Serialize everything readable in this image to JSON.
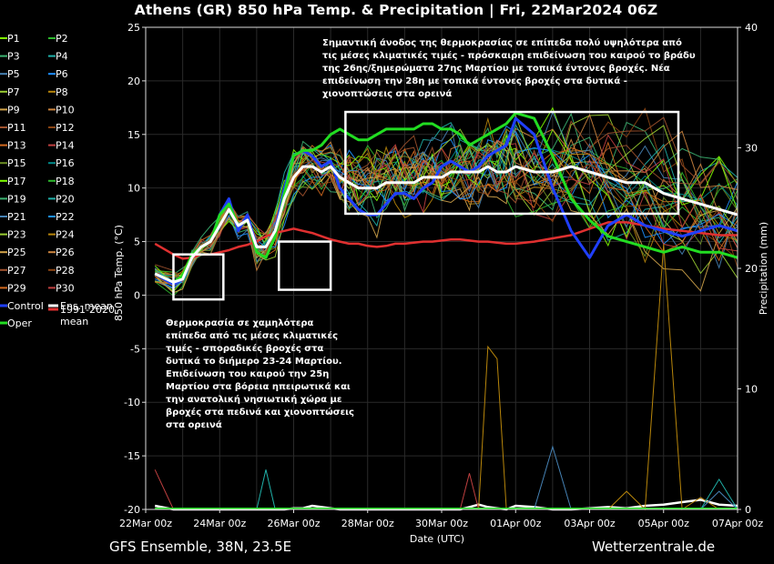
{
  "header": {
    "title": "Athens  (GR)  850 hPa Temp. & Precipitation | Fri, 22Mar2024 06Z"
  },
  "footer": {
    "model_info": "GFS Ensemble, 38N, 23.5E",
    "site": "Wetterzentrale.de"
  },
  "legend": {
    "members": [
      "P1",
      "P2",
      "P3",
      "P4",
      "P5",
      "P6",
      "P7",
      "P8",
      "P9",
      "P10",
      "P11",
      "P12",
      "P13",
      "P14",
      "P15",
      "P16",
      "P17",
      "P18",
      "P19",
      "P20",
      "P21",
      "P22",
      "P23",
      "P24",
      "P25",
      "P26",
      "P27",
      "P28",
      "P29",
      "P30"
    ],
    "control": "Control",
    "ens_mean": "Ens. mean",
    "clim_line1": "1991-2020",
    "clim_line2": "mean",
    "oper": "Oper"
  },
  "annotations": {
    "top": [
      "Σημαντική άνοδος της θερμοκρασίας σε επίπεδα πολύ υψηλότερα από",
      "τις μέσες κλιματικές τιμές - πρόσκαιρη επιδείνωση του καιρού το βράδυ",
      "της 26ης/ξημερώματα 27ης Μαρτίου με τοπικά έντονες βροχές. Νέα",
      "επιδείνωση την 28η με τοπικά έντονες βροχές στα δυτικά -",
      "χιονοπτώσεις στα ορεινά"
    ],
    "bottom": [
      "Θερμοκρασία σε χαμηλότερα",
      "επίπεδα από τις μέσες κλιματικές",
      "τιμές - σποραδικές βροχές στα",
      "δυτικά το διήμερο 23-24 Μαρτίου.",
      "Επιδείνωση του καιρού την 25η",
      "Μαρτίου στα βόρεια ηπειρωτικά και",
      "την ανατολική νησιωτική χώρα με",
      "βροχές στα πεδινά και χιονοπτώσεις",
      "στα ορεινά"
    ]
  },
  "colors": {
    "control": "#1f3fff",
    "ens_mean": "#ffffff",
    "clim": "#e03030",
    "oper": "#22dd22",
    "member_palette": [
      "#7fff00",
      "#2db82d",
      "#3cb371",
      "#20b2aa",
      "#4682b4",
      "#1e90ff",
      "#9acd32",
      "#b8860b",
      "#d2a44a",
      "#cd853f",
      "#a0522d",
      "#8b4513",
      "#d2691e",
      "#c04040",
      "#6b8e23",
      "#008b8b"
    ]
  },
  "chart_data": {
    "type": "line",
    "xlabel": "Date (UTC)",
    "ylabel": "850 hPa Temp. (°C)",
    "y2label": "Precipitation (mm)",
    "ylim": [
      -20,
      25
    ],
    "y2lim": [
      0,
      40
    ],
    "yticks": [
      -20,
      -15,
      -10,
      -5,
      0,
      5,
      10,
      15,
      20,
      25
    ],
    "y2ticks": [
      0,
      10,
      20,
      30,
      40
    ],
    "xlim_days": [
      0,
      16
    ],
    "xtick_labels": [
      "22Mar 00z",
      "24Mar 00z",
      "26Mar 00z",
      "28Mar 00z",
      "30Mar 00z",
      "01Apr 00z",
      "03Apr 00z",
      "05Apr 00z",
      "07Apr 00z"
    ],
    "grid": true,
    "legend_position": "left-outside",
    "x_days": [
      0.25,
      0.75,
      1,
      1.25,
      1.5,
      1.75,
      2,
      2.25,
      2.5,
      2.75,
      3,
      3.25,
      3.5,
      3.75,
      4,
      4.25,
      4.5,
      4.75,
      5,
      5.25,
      5.5,
      5.75,
      6,
      6.25,
      6.5,
      6.75,
      7,
      7.25,
      7.5,
      7.75,
      8,
      8.25,
      8.5,
      8.75,
      9,
      9.25,
      9.5,
      9.75,
      10,
      10.5,
      11,
      11.5,
      12,
      12.5,
      13,
      13.5,
      14,
      14.5,
      15,
      15.5,
      16
    ],
    "series": [
      {
        "name": "Ens. mean",
        "key": "mean",
        "axis": "temp",
        "values": [
          2.0,
          1.2,
          1.5,
          3.5,
          4.5,
          5.0,
          6.5,
          8.0,
          6.5,
          7.0,
          4.5,
          4.5,
          6.0,
          9.0,
          11.0,
          12.0,
          12.0,
          11.5,
          12.0,
          11.0,
          10.5,
          10.0,
          10.0,
          10.0,
          10.5,
          10.5,
          10.5,
          10.5,
          11.0,
          11.0,
          11.0,
          11.5,
          11.5,
          11.5,
          11.5,
          12.0,
          11.5,
          11.5,
          12.0,
          11.5,
          11.5,
          12.0,
          11.5,
          11.0,
          10.5,
          10.5,
          9.5,
          9.0,
          8.5,
          8.0,
          7.5
        ]
      },
      {
        "name": "Control",
        "key": "control",
        "axis": "temp",
        "values": [
          2.0,
          1.0,
          1.5,
          3.5,
          4.5,
          5.0,
          7.5,
          9.0,
          6.0,
          7.5,
          4.5,
          4.5,
          6.0,
          10.0,
          13.0,
          13.5,
          13.0,
          12.0,
          12.5,
          10.0,
          9.0,
          8.0,
          7.5,
          7.5,
          8.5,
          9.5,
          9.5,
          9.0,
          10.0,
          10.5,
          12.0,
          12.5,
          12.0,
          11.5,
          12.0,
          13.0,
          13.5,
          14.0,
          16.5,
          15.0,
          10.0,
          6.0,
          3.5,
          6.5,
          7.5,
          6.5,
          6.0,
          5.5,
          6.0,
          6.5,
          6.0
        ]
      },
      {
        "name": "Oper",
        "key": "oper",
        "axis": "temp",
        "values": [
          2.0,
          1.2,
          1.8,
          3.8,
          4.5,
          5.0,
          7.5,
          8.5,
          6.5,
          7.0,
          4.0,
          3.5,
          5.5,
          9.5,
          13.0,
          13.5,
          13.5,
          14.0,
          15.0,
          15.5,
          15.0,
          14.5,
          14.5,
          15.0,
          15.5,
          15.5,
          15.5,
          15.5,
          16.0,
          16.0,
          15.5,
          15.5,
          15.0,
          14.0,
          14.5,
          15.0,
          15.5,
          16.0,
          17.0,
          16.5,
          13.0,
          9.0,
          7.0,
          5.5,
          5.0,
          4.5,
          4.0,
          4.5,
          4.0,
          4.0,
          3.5
        ]
      },
      {
        "name": "1991-2020 mean",
        "key": "clim",
        "axis": "temp",
        "values": [
          4.8,
          3.8,
          3.4,
          3.5,
          3.8,
          3.8,
          4.0,
          4.2,
          4.5,
          4.7,
          5.0,
          5.5,
          5.8,
          6.0,
          6.2,
          6.0,
          5.8,
          5.5,
          5.2,
          5.0,
          4.8,
          4.8,
          4.6,
          4.5,
          4.6,
          4.8,
          4.8,
          4.9,
          5.0,
          5.0,
          5.1,
          5.2,
          5.2,
          5.1,
          5.0,
          5.0,
          4.9,
          4.8,
          4.8,
          5.0,
          5.3,
          5.6,
          6.2,
          6.8,
          6.8,
          6.5,
          6.2,
          6.0,
          5.8,
          5.6,
          5.6
        ]
      },
      {
        "name": "Ens. mean precipitation",
        "key": "mean_precip",
        "axis": "precip",
        "values": [
          0.3,
          0,
          0,
          0,
          0,
          0,
          0,
          0,
          0,
          0,
          0,
          0,
          0,
          0,
          0.1,
          0.1,
          0.3,
          0.2,
          0.1,
          0,
          0,
          0,
          0,
          0,
          0,
          0,
          0,
          0,
          0,
          0,
          0,
          0,
          0,
          0.2,
          0.4,
          0.2,
          0.1,
          0,
          0.3,
          0.2,
          0,
          0,
          0.1,
          0.2,
          0.1,
          0.3,
          0.4,
          0.6,
          0.8,
          0.4,
          0.3
        ]
      },
      {
        "name": "P12 precipitation",
        "key": "p12_precip",
        "axis": "precip",
        "values": [
          0,
          0,
          0,
          0,
          0,
          0,
          0,
          0,
          0,
          0,
          0,
          0,
          0,
          0,
          0,
          0,
          0,
          0,
          0,
          0,
          0,
          0,
          0,
          0,
          0,
          0,
          0,
          0,
          0,
          0,
          0,
          0,
          0,
          0,
          0,
          13.5,
          12.5,
          0,
          0,
          0,
          0,
          0,
          0,
          0,
          1.5,
          0,
          22,
          0,
          1.0,
          0,
          0
        ]
      },
      {
        "name": "P18 precipitation",
        "key": "p18_precip",
        "axis": "precip",
        "values": [
          3.3,
          0,
          0,
          0,
          0,
          0,
          0,
          0,
          0,
          0,
          0,
          0,
          0,
          0,
          0,
          0,
          0,
          0,
          0,
          0,
          0,
          0,
          0,
          0,
          0,
          0,
          0,
          0,
          0,
          0,
          0,
          0,
          0,
          3.0,
          0,
          0,
          0,
          0,
          0,
          0,
          0,
          0,
          0,
          0,
          0,
          0,
          0,
          0,
          0,
          0,
          0
        ]
      },
      {
        "name": "P24 precipitation",
        "key": "p24_precip",
        "axis": "precip",
        "values": [
          0,
          0,
          0,
          0,
          0,
          0,
          0,
          0,
          0,
          0,
          0,
          0,
          0,
          0,
          0,
          0,
          0,
          0,
          0,
          0,
          0,
          0,
          0,
          0,
          0,
          0,
          0,
          0,
          0,
          0,
          0,
          0,
          0,
          0,
          0,
          0,
          0,
          0,
          0,
          0,
          5.2,
          0,
          0,
          0,
          0,
          0,
          0,
          0,
          0,
          1.5,
          0
        ]
      },
      {
        "name": "P25 precipitation",
        "key": "p25_precip",
        "axis": "precip",
        "values": [
          0,
          0,
          0,
          0,
          0,
          0,
          0,
          0,
          0,
          0,
          0,
          3.3,
          0,
          0,
          0,
          0,
          0,
          0,
          0,
          0,
          0,
          0,
          0,
          0,
          0,
          0,
          0,
          0,
          0,
          0,
          0,
          0,
          0,
          0,
          0,
          0,
          0,
          0,
          0,
          0,
          0,
          0,
          0,
          0,
          0,
          0,
          0,
          0,
          0,
          2.5,
          0
        ]
      }
    ]
  },
  "boxes": [
    {
      "name": "box-cold-23-24mar",
      "x0": 0.75,
      "x1": 2.1,
      "y0": -0.4,
      "y1": 3.8
    },
    {
      "name": "box-cold-25mar",
      "x0": 3.6,
      "x1": 5.0,
      "y0": 0.5,
      "y1": 5.0
    },
    {
      "name": "box-warm-27mar-04apr",
      "x0": 5.4,
      "x1": 14.4,
      "y0": 7.6,
      "y1": 17.1
    }
  ]
}
